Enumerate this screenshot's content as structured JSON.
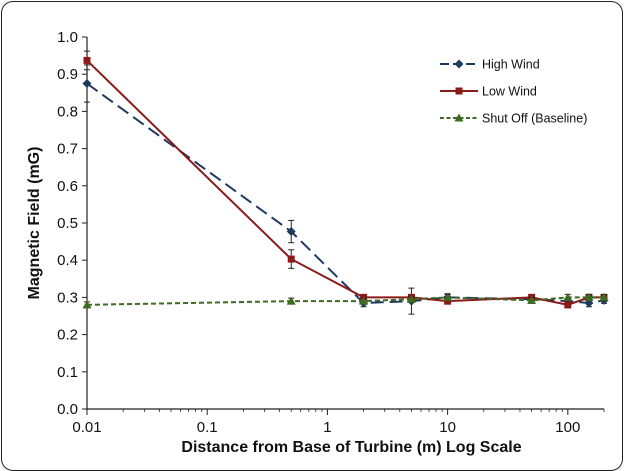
{
  "chart_data": {
    "type": "line",
    "title": "",
    "xlabel": "Distance from Base of Turbine (m) Log Scale",
    "ylabel": "Magnetic Field (mG)",
    "xscale": "log",
    "xlim": [
      0.01,
      200
    ],
    "ylim": [
      0,
      1.0
    ],
    "xticks": [
      "0.01",
      "0.1",
      "1",
      "10",
      "100"
    ],
    "yticks": [
      "0.0",
      "0.1",
      "0.2",
      "0.3",
      "0.4",
      "0.5",
      "0.6",
      "0.7",
      "0.8",
      "0.9",
      "1.0"
    ],
    "grid": false,
    "legend_position": "top-right",
    "series": [
      {
        "name": "High Wind",
        "color": "#1f3a5f",
        "marker": "diamond",
        "dash": "long-dash",
        "x": [
          0.01,
          0.5,
          2,
          5,
          10,
          50,
          100,
          150,
          200
        ],
        "y": [
          0.875,
          0.477,
          0.285,
          0.29,
          0.3,
          0.295,
          0.29,
          0.285,
          0.292
        ],
        "err": [
          0.05,
          0.03,
          0.01,
          0.035,
          0.01,
          0.008,
          0.008,
          0.01,
          0.008
        ]
      },
      {
        "name": "Low Wind",
        "color": "#8b1a1a",
        "marker": "square",
        "dash": "solid",
        "x": [
          0.01,
          0.5,
          2,
          5,
          10,
          50,
          100,
          150,
          200
        ],
        "y": [
          0.937,
          0.403,
          0.3,
          0.3,
          0.29,
          0.3,
          0.28,
          0.3,
          0.3
        ],
        "err": [
          0.025,
          0.025,
          0.008,
          0.008,
          0.008,
          0.008,
          0.008,
          0.008,
          0.008
        ]
      },
      {
        "name": "Shut Off (Baseline)",
        "color": "#3d6b1f",
        "marker": "triangle",
        "dash": "short-dash",
        "x": [
          0.01,
          0.5,
          2,
          5,
          10,
          50,
          100,
          150,
          200
        ],
        "y": [
          0.28,
          0.29,
          0.29,
          0.295,
          0.3,
          0.292,
          0.3,
          0.3,
          0.3
        ],
        "err": [
          0.008,
          0.008,
          0.008,
          0.008,
          0.008,
          0.008,
          0.008,
          0.008,
          0.008
        ]
      }
    ]
  }
}
